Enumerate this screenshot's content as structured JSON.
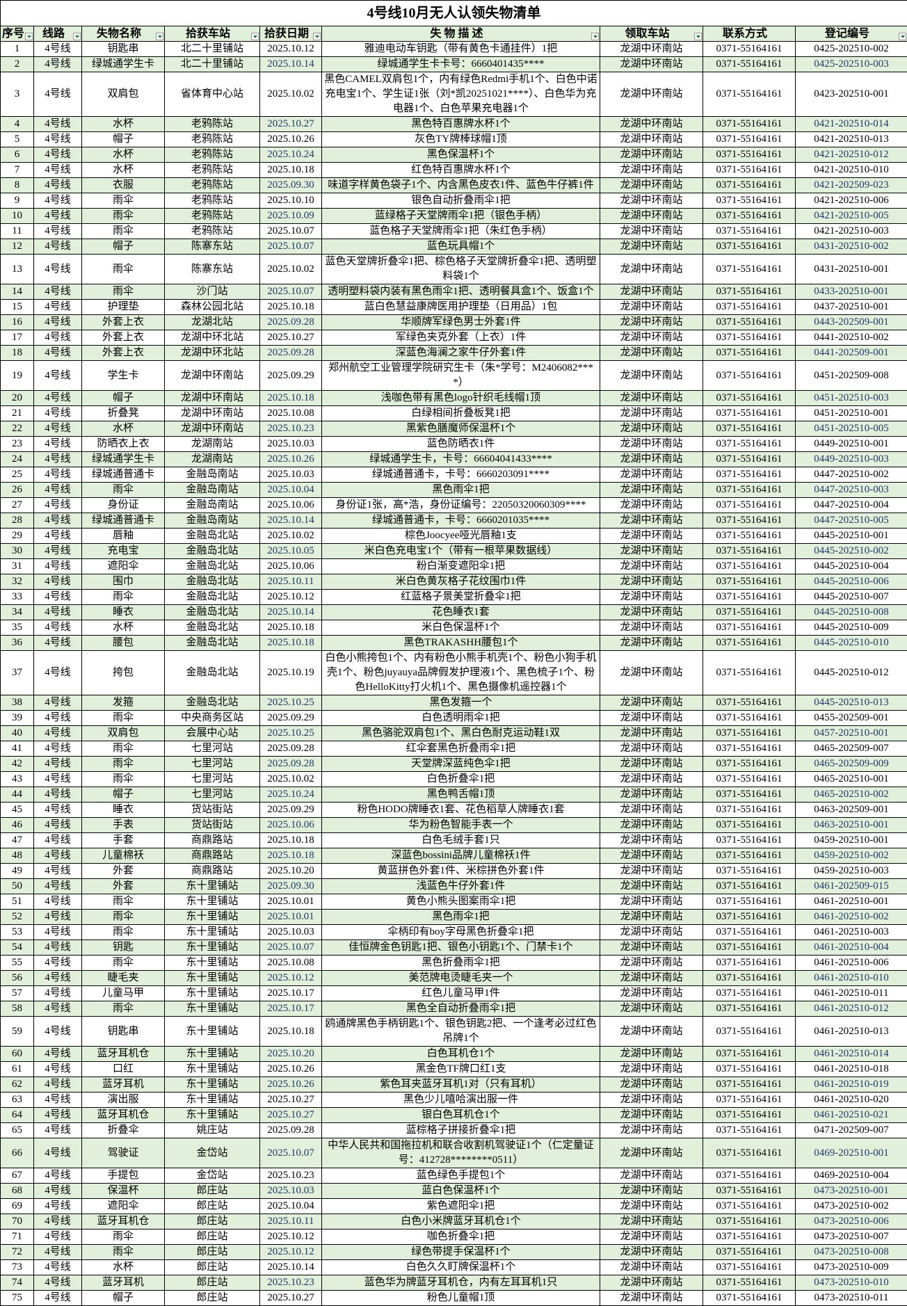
{
  "title": "4号线10月无人认领失物清单",
  "columns": [
    "序号",
    "线路",
    "失物名称",
    "拾获车站",
    "拾获日期",
    "失 物 描 述",
    "领取车站",
    "联系方式",
    "登记编号"
  ],
  "colors": {
    "header_bg": "#e2efda",
    "alt_row_bg": "#e2efda",
    "border": "#000000"
  },
  "rows": [
    [
      "1",
      "4号线",
      "钥匙串",
      "北二十里铺站",
      "2025.10.12",
      "雅迪电动车钥匙（带有黄色卡通挂件）1把",
      "龙湖中环南站",
      "0371-55164161",
      "0425-202510-002"
    ],
    [
      "2",
      "4号线",
      "绿城通学生卡",
      "北二十里铺站",
      "2025.10.14",
      "绿城通学生卡卡号：6660401435****",
      "龙湖中环南站",
      "0371-55164161",
      "0425-202510-003"
    ],
    [
      "3",
      "4号线",
      "双肩包",
      "省体育中心站",
      "2025.10.02",
      "黑色CAMEL双肩包1个，内有绿色Redmi手机1个、白色中诺充电宝1个、学生证1张（刘*凯20251021****）、白色华为充电器1个、白色苹果充电器1个",
      "龙湖中环南站",
      "0371-55164161",
      "0423-202510-001"
    ],
    [
      "4",
      "4号线",
      "水杯",
      "老鸦陈站",
      "2025.10.27",
      "黑色特百惠牌水杯1个",
      "龙湖中环南站",
      "0371-55164161",
      "0421-202510-014"
    ],
    [
      "5",
      "4号线",
      "帽子",
      "老鸦陈站",
      "2025.10.26",
      "灰色TY牌棒球帽1顶",
      "龙湖中环南站",
      "0371-55164161",
      "0421-202510-013"
    ],
    [
      "6",
      "4号线",
      "水杯",
      "老鸦陈站",
      "2025.10.24",
      "黑色保温杯1个",
      "龙湖中环南站",
      "0371-55164161",
      "0421-202510-012"
    ],
    [
      "7",
      "4号线",
      "水杯",
      "老鸦陈站",
      "2025.10.18",
      "红色特百惠牌水杯1个",
      "龙湖中环南站",
      "0371-55164161",
      "0421-202510-010"
    ],
    [
      "8",
      "4号线",
      "衣服",
      "老鸦陈站",
      "2025.09.30",
      "味道字样黄色袋子1个、内含黑色皮衣1件、蓝色牛仔裤1件",
      "龙湖中环南站",
      "0371-55164161",
      "0421-202509-023"
    ],
    [
      "9",
      "4号线",
      "雨伞",
      "老鸦陈站",
      "2025.10.10",
      "银色自动折叠雨伞1把",
      "龙湖中环南站",
      "0371-55164161",
      "0421-202510-006"
    ],
    [
      "10",
      "4号线",
      "雨伞",
      "老鸦陈站",
      "2025.10.09",
      "蓝绿格子天堂牌雨伞1把（银色手柄）",
      "龙湖中环南站",
      "0371-55164161",
      "0421-202510-005"
    ],
    [
      "11",
      "4号线",
      "雨伞",
      "老鸦陈站",
      "2025.10.07",
      "蓝色格子天堂牌雨伞1把（朱红色手柄）",
      "龙湖中环南站",
      "0371-55164161",
      "0421-202510-003"
    ],
    [
      "12",
      "4号线",
      "帽子",
      "陈寨东站",
      "2025.10.07",
      "蓝色玩具帽1个",
      "龙湖中环南站",
      "0371-55164161",
      "0431-202510-002"
    ],
    [
      "13",
      "4号线",
      "雨伞",
      "陈寨东站",
      "2025.10.02",
      "蓝色天堂牌折叠伞1把、棕色格子天堂牌折叠伞1把、透明塑料袋1个",
      "龙湖中环南站",
      "0371-55164161",
      "0431-202510-001"
    ],
    [
      "14",
      "4号线",
      "雨伞",
      "沙门站",
      "2025.10.07",
      "透明塑料袋内装有黑色雨伞1把、透明餐具盒1个、饭盒1个",
      "龙湖中环南站",
      "0371-55164161",
      "0433-202510-001"
    ],
    [
      "15",
      "4号线",
      "护理垫",
      "森林公园北站",
      "2025.10.18",
      "蓝白色慧益康牌医用护理垫（日用品）1包",
      "龙湖中环南站",
      "0371-55164161",
      "0437-202510-001"
    ],
    [
      "16",
      "4号线",
      "外套上衣",
      "龙湖北站",
      "2025.09.28",
      "华顺牌军绿色男士外套1件",
      "龙湖中环南站",
      "0371-55164161",
      "0443-202509-001"
    ],
    [
      "17",
      "4号线",
      "外套上衣",
      "龙湖中环北站",
      "2025.10.27",
      "军绿色夹克外套（上衣）1件",
      "龙湖中环南站",
      "0371-55164161",
      "0441-202510-002"
    ],
    [
      "18",
      "4号线",
      "外套上衣",
      "龙湖中环北站",
      "2025.09.28",
      "深蓝色海澜之家牛仔外套1件",
      "龙湖中环南站",
      "0371-55164161",
      "0441-202509-001"
    ],
    [
      "19",
      "4号线",
      "学生卡",
      "龙湖中环南站",
      "2025.09.29",
      "郑州航空工业管理学院研究生卡（朱*学号：M2406082****）",
      "龙湖中环南站",
      "0371-55164161",
      "0451-202509-008"
    ],
    [
      "20",
      "4号线",
      "帽子",
      "龙湖中环南站",
      "2025.10.18",
      "浅咖色带有黑色logo针织毛线帽1顶",
      "龙湖中环南站",
      "0371-55164161",
      "0451-202510-003"
    ],
    [
      "21",
      "4号线",
      "折叠凳",
      "龙湖中环南站",
      "2025.10.08",
      "白绿相间折叠板凳1把",
      "龙湖中环南站",
      "0371-55164161",
      "0451-202510-001"
    ],
    [
      "22",
      "4号线",
      "水杯",
      "龙湖中环南站",
      "2025.10.23",
      "黑紫色膳魔师保温杯1个",
      "龙湖中环南站",
      "0371-55164161",
      "0451-202510-005"
    ],
    [
      "23",
      "4号线",
      "防晒衣上衣",
      "龙湖南站",
      "2025.10.03",
      "蓝色防晒衣1件",
      "龙湖中环南站",
      "0371-55164161",
      "0449-202510-001"
    ],
    [
      "24",
      "4号线",
      "绿城通学生卡",
      "龙湖南站",
      "2025.10.26",
      "绿城通学生卡，卡号：66604041433****",
      "龙湖中环南站",
      "0371-55164161",
      "0449-202510-003"
    ],
    [
      "25",
      "4号线",
      "绿城通普通卡",
      "金融岛南站",
      "2025.10.03",
      "绿城通普通卡，卡号：6660203091****",
      "龙湖中环南站",
      "0371-55164161",
      "0447-202510-002"
    ],
    [
      "26",
      "4号线",
      "雨伞",
      "金融岛南站",
      "2025.10.04",
      "黑色雨伞1把",
      "龙湖中环南站",
      "0371-55164161",
      "0447-202510-003"
    ],
    [
      "27",
      "4号线",
      "身份证",
      "金融岛南站",
      "2025.10.06",
      "身份证1张，高*浩，身份证编号：22050320060309****",
      "龙湖中环南站",
      "0371-55164161",
      "0447-202510-004"
    ],
    [
      "28",
      "4号线",
      "绿城通普通卡",
      "金融岛南站",
      "2025.10.14",
      "绿城通普通卡，卡号：6660201035****",
      "龙湖中环南站",
      "0371-55164161",
      "0447-202510-005"
    ],
    [
      "29",
      "4号线",
      "唇釉",
      "金融岛北站",
      "2025.10.02",
      "棕色Joocyee哑光唇釉1支",
      "龙湖中环南站",
      "0371-55164161",
      "0445-202510-001"
    ],
    [
      "30",
      "4号线",
      "充电宝",
      "金融岛北站",
      "2025.10.05",
      "米白色充电宝1个（带有一根苹果数据线）",
      "龙湖中环南站",
      "0371-55164161",
      "0445-202510-002"
    ],
    [
      "31",
      "4号线",
      "遮阳伞",
      "金融岛北站",
      "2025.10.06",
      "粉白渐变遮阳伞1把",
      "龙湖中环南站",
      "0371-55164161",
      "0445-202510-004"
    ],
    [
      "32",
      "4号线",
      "围巾",
      "金融岛北站",
      "2025.10.11",
      "米白色黄灰格子花纹围巾1件",
      "龙湖中环南站",
      "0371-55164161",
      "0445-202510-006"
    ],
    [
      "33",
      "4号线",
      "雨伞",
      "金融岛北站",
      "2025.10.12",
      "红蓝格子景美堂折叠伞1把",
      "龙湖中环南站",
      "0371-55164161",
      "0445-202510-007"
    ],
    [
      "34",
      "4号线",
      "睡衣",
      "金融岛北站",
      "2025.10.14",
      "花色睡衣1套",
      "龙湖中环南站",
      "0371-55164161",
      "0445-202510-008"
    ],
    [
      "35",
      "4号线",
      "水杯",
      "金融岛北站",
      "2025.10.18",
      "米白色保温杯1个",
      "龙湖中环南站",
      "0371-55164161",
      "0445-202510-009"
    ],
    [
      "36",
      "4号线",
      "腰包",
      "金融岛北站",
      "2025.10.18",
      "黑色TRAKASHH腰包1个",
      "龙湖中环南站",
      "0371-55164161",
      "0445-202510-010"
    ],
    [
      "37",
      "4号线",
      "挎包",
      "金融岛北站",
      "2025.10.19",
      "白色小熊挎包1个、内有粉色小熊手机壳1个、粉色小狗手机壳1个、粉色juyauya品牌假发护理液1个、黑色梳子1个、粉色HelloKitty打火机1个、黑色摄像机遥控器1个",
      "龙湖中环南站",
      "0371-55164161",
      "0445-202510-012"
    ],
    [
      "38",
      "4号线",
      "发箍",
      "金融岛北站",
      "2025.10.25",
      "黑色发箍一个",
      "龙湖中环南站",
      "0371-55164161",
      "0445-202510-013"
    ],
    [
      "39",
      "4号线",
      "雨伞",
      "中央商务区站",
      "2025.09.29",
      "白色透明雨伞1把",
      "龙湖中环南站",
      "0371-55164161",
      "0455-202509-001"
    ],
    [
      "40",
      "4号线",
      "双肩包",
      "会展中心站",
      "2025.10.25",
      "黑色骆驼双肩包1个、黑白色耐克运动鞋1双",
      "龙湖中环南站",
      "0371-55164161",
      "0457-202510-001"
    ],
    [
      "41",
      "4号线",
      "雨伞",
      "七里河站",
      "2025.09.28",
      "红伞套黑色折叠雨伞1把",
      "龙湖中环南站",
      "0371-55164161",
      "0465-202509-007"
    ],
    [
      "42",
      "4号线",
      "雨伞",
      "七里河站",
      "2025.09.28",
      "天堂牌深蓝纯色伞1把",
      "龙湖中环南站",
      "0371-55164161",
      "0465-202509-009"
    ],
    [
      "43",
      "4号线",
      "雨伞",
      "七里河站",
      "2025.10.02",
      "白色折叠伞1把",
      "龙湖中环南站",
      "0371-55164161",
      "0465-202510-001"
    ],
    [
      "44",
      "4号线",
      "帽子",
      "七里河站",
      "2025.10.24",
      "黑色鸭舌帽1顶",
      "龙湖中环南站",
      "0371-55164161",
      "0465-202510-002"
    ],
    [
      "45",
      "4号线",
      "睡衣",
      "货站街站",
      "2025.09.29",
      "粉色HODO牌睡衣1套、花色稻草人牌睡衣1套",
      "龙湖中环南站",
      "0371-55164161",
      "0463-202509-001"
    ],
    [
      "46",
      "4号线",
      "手表",
      "货站街站",
      "2025.10.06",
      "华为粉色智能手表一个",
      "龙湖中环南站",
      "0371-55164161",
      "0463-202510-001"
    ],
    [
      "47",
      "4号线",
      "手套",
      "商鼎路站",
      "2025.10.18",
      "白色毛绒手套1只",
      "龙湖中环南站",
      "0371-55164161",
      "0459-202510-001"
    ],
    [
      "48",
      "4号线",
      "儿童棉袄",
      "商鼎路站",
      "2025.10.18",
      "深蓝色bossini品牌儿童棉袄1件",
      "龙湖中环南站",
      "0371-55164161",
      "0459-202510-002"
    ],
    [
      "49",
      "4号线",
      "外套",
      "商鼎路站",
      "2025.10.20",
      "黄蓝拼色外套1件、米棕拼色外套1件",
      "龙湖中环南站",
      "0371-55164161",
      "0459-202510-003"
    ],
    [
      "50",
      "4号线",
      "外套",
      "东十里铺站",
      "2025.09.30",
      "浅蓝色牛仔外套1件",
      "龙湖中环南站",
      "0371-55164161",
      "0461-202509-015"
    ],
    [
      "51",
      "4号线",
      "雨伞",
      "东十里铺站",
      "2025.10.01",
      "黄色小熊头图案雨伞1把",
      "龙湖中环南站",
      "0371-55164161",
      "0461-202510-001"
    ],
    [
      "52",
      "4号线",
      "雨伞",
      "东十里铺站",
      "2025.10.01",
      "黑色雨伞1把",
      "龙湖中环南站",
      "0371-55164161",
      "0461-202510-002"
    ],
    [
      "53",
      "4号线",
      "雨伞",
      "东十里铺站",
      "2025.10.03",
      "伞柄印有boy字母黑色折叠伞1把",
      "龙湖中环南站",
      "0371-55164161",
      "0461-202510-003"
    ],
    [
      "54",
      "4号线",
      "钥匙",
      "东十里铺站",
      "2025.10.07",
      "佳恒牌金色钥匙1把、银色小钥匙1个、门禁卡1个",
      "龙湖中环南站",
      "0371-55164161",
      "0461-202510-004"
    ],
    [
      "55",
      "4号线",
      "雨伞",
      "东十里铺站",
      "2025.10.08",
      "黑色折叠雨伞1把",
      "龙湖中环南站",
      "0371-55164161",
      "0461-202510-006"
    ],
    [
      "56",
      "4号线",
      "睫毛夹",
      "东十里铺站",
      "2025.10.12",
      "美范牌电烫睫毛夹一个",
      "龙湖中环南站",
      "0371-55164161",
      "0461-202510-010"
    ],
    [
      "57",
      "4号线",
      "儿童马甲",
      "东十里铺站",
      "2025.10.17",
      "红色儿童马甲1件",
      "龙湖中环南站",
      "0371-55164161",
      "0461-202510-011"
    ],
    [
      "58",
      "4号线",
      "雨伞",
      "东十里铺站",
      "2025.10.17",
      "黑色全自动折叠雨伞1把",
      "龙湖中环南站",
      "0371-55164161",
      "0461-202510-012"
    ],
    [
      "59",
      "4号线",
      "钥匙串",
      "东十里铺站",
      "2025.10.18",
      "鸥通牌黑色手柄钥匙1个、银色钥匙2把、一个逢考必过红色吊牌1个",
      "龙湖中环南站",
      "0371-55164161",
      "0461-202510-013"
    ],
    [
      "60",
      "4号线",
      "蓝牙耳机仓",
      "东十里铺站",
      "2025.10.20",
      "白色耳机仓1个",
      "龙湖中环南站",
      "0371-55164161",
      "0461-202510-014"
    ],
    [
      "61",
      "4号线",
      "口红",
      "东十里铺站",
      "2025.10.26",
      "黑金色TF牌口红1支",
      "龙湖中环南站",
      "0371-55164161",
      "0461-202510-018"
    ],
    [
      "62",
      "4号线",
      "蓝牙耳机",
      "东十里铺站",
      "2025.10.26",
      "紫色耳夹蓝牙耳机1对（只有耳机）",
      "龙湖中环南站",
      "0371-55164161",
      "0461-202510-019"
    ],
    [
      "63",
      "4号线",
      "演出服",
      "东十里铺站",
      "2025.10.27",
      "黑色少儿嘻哈演出服一件",
      "龙湖中环南站",
      "0371-55164161",
      "0461-202510-020"
    ],
    [
      "64",
      "4号线",
      "蓝牙耳机仓",
      "东十里铺站",
      "2025.10.27",
      "银白色耳机仓1个",
      "龙湖中环南站",
      "0371-55164161",
      "0461-202510-021"
    ],
    [
      "65",
      "4号线",
      "折叠伞",
      "姚庄站",
      "2025.09.28",
      "蓝棕格子拼接折叠伞1把",
      "龙湖中环南站",
      "0371-55164161",
      "0471-202509-007"
    ],
    [
      "66",
      "4号线",
      "驾驶证",
      "金岱站",
      "2025.10.07",
      "中华人民共和国拖拉机和联合收割机驾驶证1个（仁定量证号：412728********0511）",
      "龙湖中环南站",
      "0371-55164161",
      "0469-202510-001"
    ],
    [
      "67",
      "4号线",
      "手提包",
      "金岱站",
      "2025.10.23",
      "蓝色绿色手提包1个",
      "龙湖中环南站",
      "0371-55164161",
      "0469-202510-004"
    ],
    [
      "68",
      "4号线",
      "保温杯",
      "郎庄站",
      "2025.10.03",
      "蓝白色保温杯1个",
      "龙湖中环南站",
      "0371-55164161",
      "0473-202510-001"
    ],
    [
      "69",
      "4号线",
      "遮阳伞",
      "郎庄站",
      "2025.10.04",
      "紫色遮阳伞1把",
      "龙湖中环南站",
      "0371-55164161",
      "0473-202510-002"
    ],
    [
      "70",
      "4号线",
      "蓝牙耳机仓",
      "郎庄站",
      "2025.10.11",
      "白色小米牌蓝牙耳机仓1个",
      "龙湖中环南站",
      "0371-55164161",
      "0473-202510-006"
    ],
    [
      "71",
      "4号线",
      "雨伞",
      "郎庄站",
      "2025.10.12",
      "咖色折叠伞1把",
      "龙湖中环南站",
      "0371-55164161",
      "0473-202510-007"
    ],
    [
      "72",
      "4号线",
      "雨伞",
      "郎庄站",
      "2025.10.12",
      "绿色带提手保温杯1个",
      "龙湖中环南站",
      "0371-55164161",
      "0473-202510-008"
    ],
    [
      "73",
      "4号线",
      "水杯",
      "郎庄站",
      "2025.10.14",
      "白色久久盯牌保温杯1个",
      "龙湖中环南站",
      "0371-55164161",
      "0473-202510-009"
    ],
    [
      "74",
      "4号线",
      "蓝牙耳机",
      "郎庄站",
      "2025.10.23",
      "蓝色华为牌蓝牙耳机仓，内有左耳耳机1只",
      "龙湖中环南站",
      "0371-55164161",
      "0473-202510-010"
    ],
    [
      "75",
      "4号线",
      "帽子",
      "郎庄站",
      "2025.10.27",
      "粉色儿童帽1顶",
      "龙湖中环南站",
      "0371-55164161",
      "0473-202510-011"
    ]
  ]
}
